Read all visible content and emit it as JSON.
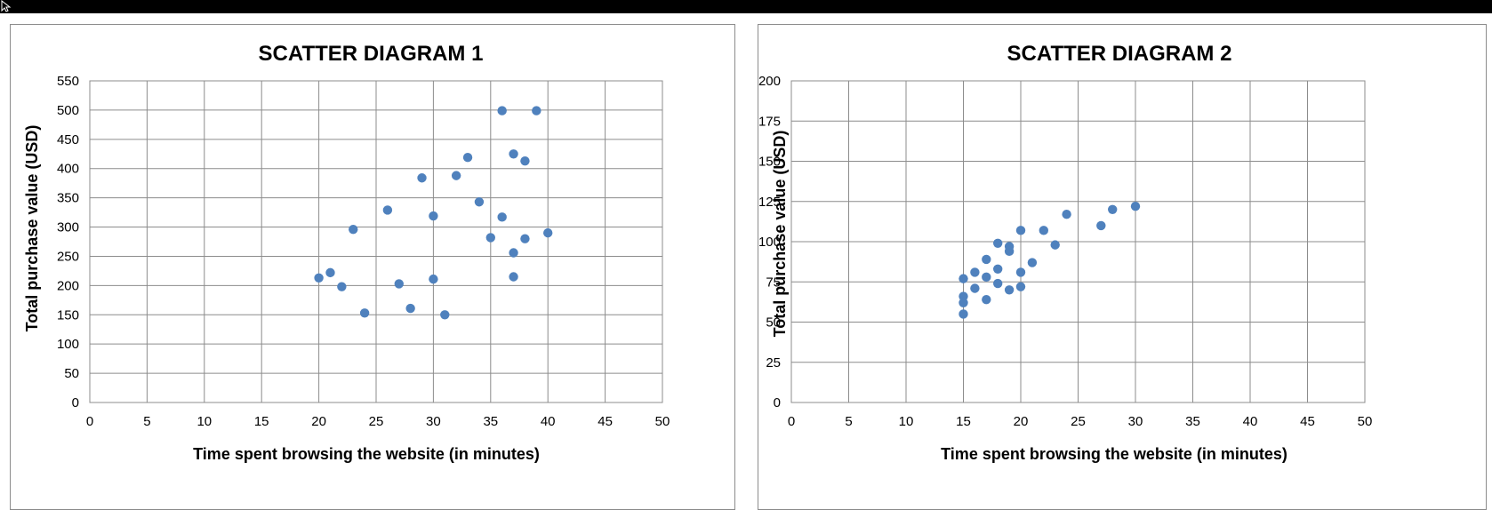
{
  "colors": {
    "marker": "#4f81bd",
    "grid": "#8c8c8c",
    "topbar": "#000000"
  },
  "chart_data": [
    {
      "type": "scatter",
      "title": "SCATTER DIAGRAM 1",
      "xlabel": "Time spent browsing the website (in minutes)",
      "ylabel": "Total purchase value (USD)",
      "xlim": [
        0,
        50
      ],
      "ylim": [
        0,
        550
      ],
      "xticks": [
        0,
        5,
        10,
        15,
        20,
        25,
        30,
        35,
        40,
        45,
        50
      ],
      "yticks": [
        0,
        50,
        100,
        150,
        200,
        250,
        300,
        350,
        400,
        450,
        500,
        550
      ],
      "grid": true,
      "legend": "none",
      "points": [
        {
          "x": 20,
          "y": 213
        },
        {
          "x": 21,
          "y": 222
        },
        {
          "x": 22,
          "y": 198
        },
        {
          "x": 23,
          "y": 296
        },
        {
          "x": 24,
          "y": 153
        },
        {
          "x": 26,
          "y": 329
        },
        {
          "x": 27,
          "y": 203
        },
        {
          "x": 28,
          "y": 161
        },
        {
          "x": 29,
          "y": 384
        },
        {
          "x": 30,
          "y": 319
        },
        {
          "x": 30,
          "y": 211
        },
        {
          "x": 31,
          "y": 150
        },
        {
          "x": 32,
          "y": 388
        },
        {
          "x": 33,
          "y": 419
        },
        {
          "x": 34,
          "y": 343
        },
        {
          "x": 35,
          "y": 282
        },
        {
          "x": 36,
          "y": 499
        },
        {
          "x": 36,
          "y": 317
        },
        {
          "x": 37,
          "y": 425
        },
        {
          "x": 37,
          "y": 256
        },
        {
          "x": 37,
          "y": 215
        },
        {
          "x": 38,
          "y": 413
        },
        {
          "x": 38,
          "y": 280
        },
        {
          "x": 39,
          "y": 499
        },
        {
          "x": 40,
          "y": 290
        }
      ]
    },
    {
      "type": "scatter",
      "title": "SCATTER DIAGRAM 2",
      "xlabel": "Time spent browsing the website (in minutes)",
      "ylabel": "Total purchase value (USD)",
      "xlim": [
        0,
        50
      ],
      "ylim": [
        0,
        200
      ],
      "xticks": [
        0,
        5,
        10,
        15,
        20,
        25,
        30,
        35,
        40,
        45,
        50
      ],
      "yticks": [
        0,
        25,
        50,
        75,
        100,
        125,
        150,
        175,
        200
      ],
      "grid": true,
      "legend": "none",
      "points": [
        {
          "x": 15,
          "y": 77
        },
        {
          "x": 15,
          "y": 66
        },
        {
          "x": 15,
          "y": 62
        },
        {
          "x": 15,
          "y": 55
        },
        {
          "x": 16,
          "y": 81
        },
        {
          "x": 16,
          "y": 71
        },
        {
          "x": 17,
          "y": 89
        },
        {
          "x": 17,
          "y": 78
        },
        {
          "x": 17,
          "y": 64
        },
        {
          "x": 18,
          "y": 99
        },
        {
          "x": 18,
          "y": 83
        },
        {
          "x": 18,
          "y": 74
        },
        {
          "x": 19,
          "y": 97
        },
        {
          "x": 19,
          "y": 94
        },
        {
          "x": 19,
          "y": 70
        },
        {
          "x": 20,
          "y": 107
        },
        {
          "x": 20,
          "y": 81
        },
        {
          "x": 20,
          "y": 72
        },
        {
          "x": 21,
          "y": 87
        },
        {
          "x": 22,
          "y": 107
        },
        {
          "x": 23,
          "y": 98
        },
        {
          "x": 24,
          "y": 117
        },
        {
          "x": 27,
          "y": 110
        },
        {
          "x": 28,
          "y": 120
        },
        {
          "x": 30,
          "y": 122
        }
      ]
    }
  ]
}
